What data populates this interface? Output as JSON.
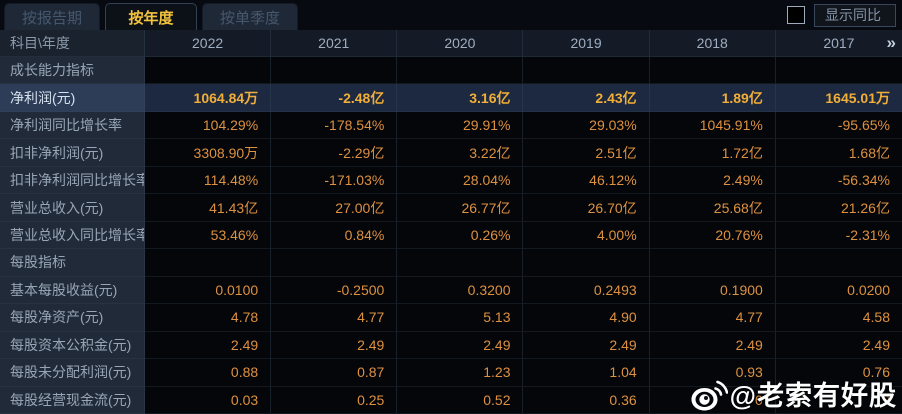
{
  "tabs": [
    {
      "label": "按报告期",
      "active": false
    },
    {
      "label": "按年度",
      "active": true
    },
    {
      "label": "按单季度",
      "active": false
    }
  ],
  "controls": {
    "show_yoy_label": "显示同比",
    "checkbox_checked": false
  },
  "table": {
    "corner_header": "科目\\年度",
    "year_columns": [
      "2022",
      "2021",
      "2020",
      "2019",
      "2018",
      "2017"
    ],
    "more_icon": "»",
    "rows": [
      {
        "type": "section",
        "label": "成长能力指标"
      },
      {
        "type": "data",
        "label": "净利润(元)",
        "highlight": true,
        "values": [
          "1064.84万",
          "-2.48亿",
          "3.16亿",
          "2.43亿",
          "1.89亿",
          "1645.01万"
        ]
      },
      {
        "type": "data",
        "label": "净利润同比增长率",
        "values": [
          "104.29%",
          "-178.54%",
          "29.91%",
          "29.03%",
          "1045.91%",
          "-95.65%"
        ]
      },
      {
        "type": "data",
        "label": "扣非净利润(元)",
        "values": [
          "3308.90万",
          "-2.29亿",
          "3.22亿",
          "2.51亿",
          "1.72亿",
          "1.68亿"
        ]
      },
      {
        "type": "data",
        "label": "扣非净利润同比增长率",
        "values": [
          "114.48%",
          "-171.03%",
          "28.04%",
          "46.12%",
          "2.49%",
          "-56.34%"
        ]
      },
      {
        "type": "data",
        "label": "营业总收入(元)",
        "values": [
          "41.43亿",
          "27.00亿",
          "26.77亿",
          "26.70亿",
          "25.68亿",
          "21.26亿"
        ]
      },
      {
        "type": "data",
        "label": "营业总收入同比增长率",
        "values": [
          "53.46%",
          "0.84%",
          "0.26%",
          "4.00%",
          "20.76%",
          "-2.31%"
        ]
      },
      {
        "type": "section",
        "label": "每股指标"
      },
      {
        "type": "data",
        "label": "基本每股收益(元)",
        "values": [
          "0.0100",
          "-0.2500",
          "0.3200",
          "0.2493",
          "0.1900",
          "0.0200"
        ]
      },
      {
        "type": "data",
        "label": "每股净资产(元)",
        "values": [
          "4.78",
          "4.77",
          "5.13",
          "4.90",
          "4.77",
          "4.58"
        ]
      },
      {
        "type": "data",
        "label": "每股资本公积金(元)",
        "values": [
          "2.49",
          "2.49",
          "2.49",
          "2.49",
          "2.49",
          "2.49"
        ]
      },
      {
        "type": "data",
        "label": "每股未分配利润(元)",
        "values": [
          "0.88",
          "0.87",
          "1.23",
          "1.04",
          "0.93",
          "0.76"
        ]
      },
      {
        "type": "data",
        "label": "每股经营现金流(元)",
        "values": [
          "0.03",
          "0.25",
          "0.52",
          "0.36",
          "0",
          "9"
        ]
      }
    ]
  },
  "watermark": {
    "text": "@老索有好股",
    "icon": "weibo-icon"
  },
  "colors": {
    "accent_gold": "#f4c33c",
    "value_orange": "#de9140",
    "highlight_value": "#f1ae38",
    "row_label_bg": "#212a38",
    "highlight_row_bg": "#1c2940",
    "header_bg": "#151b26",
    "cell_bg": "#04060a"
  }
}
